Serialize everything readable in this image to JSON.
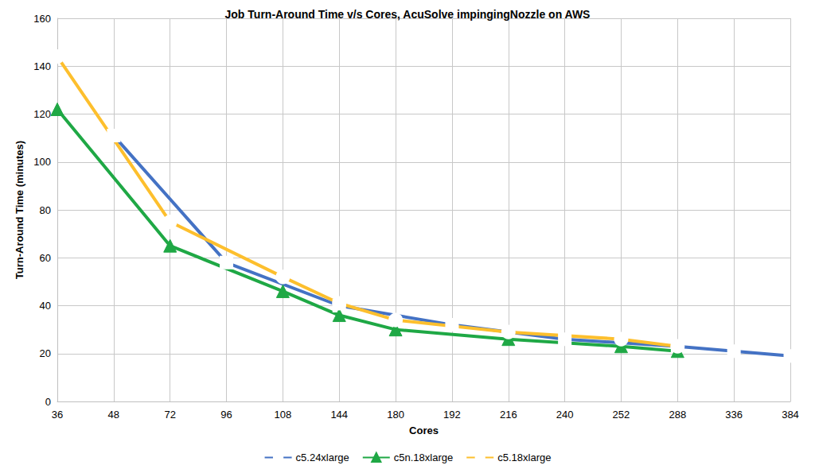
{
  "chart_data": {
    "type": "line",
    "title": "Job Turn-Around Time v/s Cores, AcuSolve impingingNozzle on AWS",
    "x_label": "Cores",
    "y_label": "Turn-Around Time (minutes)",
    "categories": [
      "36",
      "48",
      "72",
      "96",
      "108",
      "144",
      "180",
      "192",
      "216",
      "240",
      "252",
      "288",
      "336",
      "384"
    ],
    "series": [
      {
        "name": "c5.24xlarge",
        "color": "#4472C4",
        "marker": "empty-square",
        "line_style": "solid",
        "values": [
          null,
          111,
          null,
          58,
          null,
          40,
          null,
          32,
          null,
          26,
          null,
          23,
          21,
          19
        ]
      },
      {
        "name": "c5n.18xlarge",
        "color": "#1FA845",
        "marker": "triangle",
        "line_style": "solid",
        "values": [
          122,
          null,
          65,
          null,
          46,
          36,
          30,
          null,
          26,
          null,
          23,
          21,
          null,
          null
        ]
      },
      {
        "name": "c5.18xlarge",
        "color": "#FDBF2D",
        "marker": "empty-circle",
        "line_style": "solid",
        "values": [
          144,
          null,
          75,
          null,
          52,
          41,
          34,
          null,
          29,
          null,
          26,
          23,
          null,
          null
        ]
      }
    ],
    "ylim": [
      0,
      160
    ],
    "yticks": [
      0,
      20,
      40,
      60,
      80,
      100,
      120,
      140,
      160
    ],
    "grid": true,
    "legend": "bottom"
  }
}
